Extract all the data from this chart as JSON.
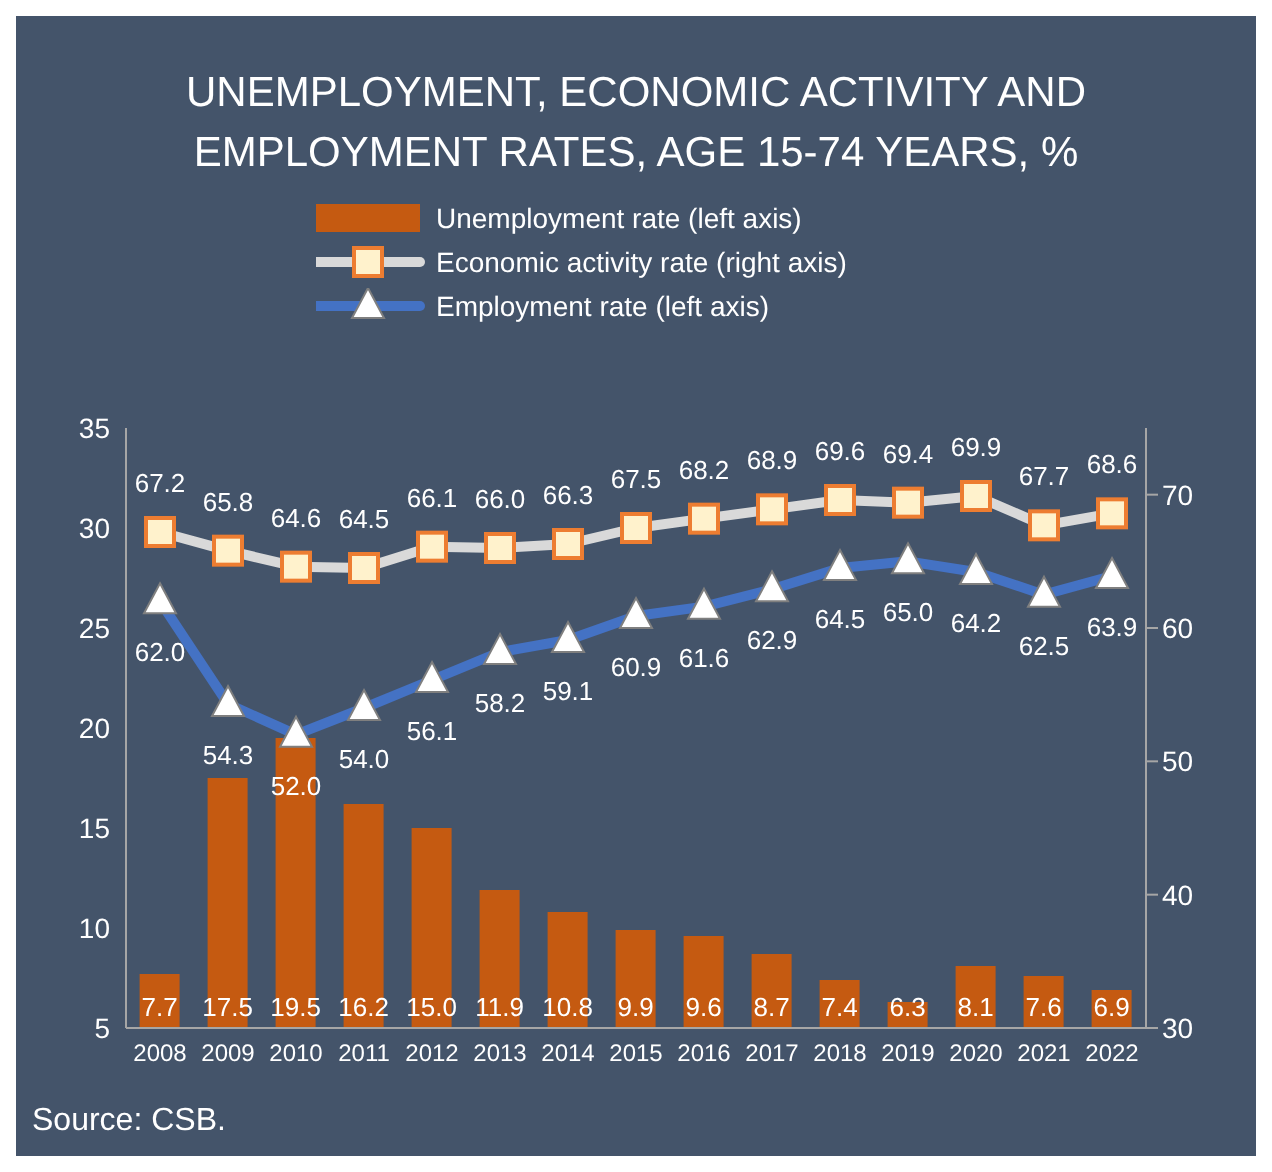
{
  "chart_data": {
    "type": "bar",
    "title": "UNEMPLOYMENT, ECONOMIC ACTIVITY AND EMPLOYMENT RATES, AGE 15-74 YEARS, %",
    "categories": [
      "2008",
      "2009",
      "2010",
      "2011",
      "2012",
      "2013",
      "2014",
      "2015",
      "2016",
      "2017",
      "2018",
      "2019",
      "2020",
      "2021",
      "2022"
    ],
    "series": [
      {
        "name": "Unemployment rate (left axis)",
        "color": "#c55a11",
        "values": [
          7.7,
          17.5,
          19.5,
          16.2,
          15.0,
          11.9,
          10.8,
          9.9,
          9.6,
          8.7,
          7.4,
          6.3,
          8.1,
          7.6,
          6.9
        ],
        "value_labels": [
          "7.7",
          "17.5",
          "19.5",
          "16.2",
          "15.0",
          "11.9",
          "10.8",
          "9.9",
          "9.6",
          "8.7",
          "7.4",
          "6.3",
          "8.1",
          "7.6",
          "6.9"
        ]
      },
      {
        "name": "Economic activity rate (right axis)",
        "type": "line",
        "axis": "y2",
        "color": "#d9d9d9",
        "marker": "square",
        "values": [
          67.2,
          65.8,
          64.6,
          64.5,
          66.1,
          66.0,
          66.3,
          67.5,
          68.2,
          68.9,
          69.6,
          69.4,
          69.9,
          67.7,
          68.6
        ],
        "value_labels": [
          "67.2",
          "65.8",
          "64.6",
          "64.5",
          "66.1",
          "66.0",
          "66.3",
          "67.5",
          "68.2",
          "68.9",
          "69.6",
          "69.4",
          "69.9",
          "67.7",
          "68.6"
        ]
      },
      {
        "name": "Employment rate (left axis)",
        "type": "line",
        "axis": "y2",
        "color": "#4472c4",
        "marker": "triangle",
        "values": [
          62.0,
          54.3,
          52.0,
          54.0,
          56.1,
          58.2,
          59.1,
          60.9,
          61.6,
          62.9,
          64.5,
          65.0,
          64.2,
          62.5,
          63.9
        ],
        "value_labels": [
          "62.0",
          "54.3",
          "52.0",
          "54.0",
          "56.1",
          "58.2",
          "59.1",
          "60.9",
          "61.6",
          "62.9",
          "64.5",
          "65.0",
          "64.2",
          "62.5",
          "63.9"
        ]
      }
    ],
    "ylim": [
      5,
      35
    ],
    "yticks": [
      5,
      10,
      15,
      20,
      25,
      30,
      35
    ],
    "y2lim": [
      30,
      75
    ],
    "y2ticks": [
      30,
      40,
      50,
      60,
      70
    ],
    "legend": "top",
    "annotations": [
      "Source: CSB."
    ]
  }
}
